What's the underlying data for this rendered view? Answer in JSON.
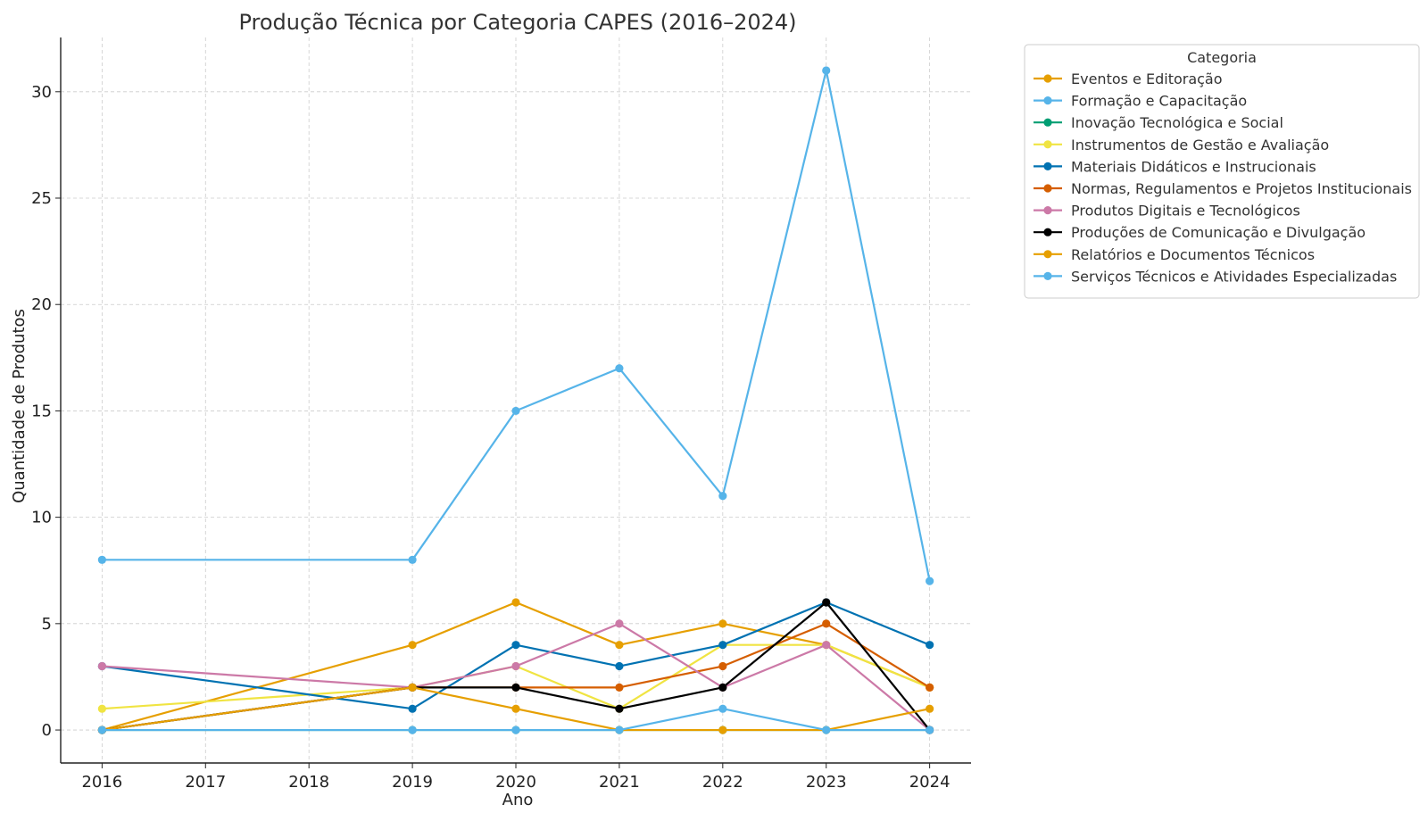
{
  "chart_data": {
    "type": "line",
    "title": "Produção Técnica por Categoria CAPES (2016–2024)",
    "xlabel": "Ano",
    "ylabel": "Quantidade de Produtos",
    "x": [
      2016,
      2019,
      2020,
      2021,
      2022,
      2023,
      2024
    ],
    "xticks": [
      "2016",
      "2017",
      "2018",
      "2019",
      "2020",
      "2021",
      "2022",
      "2023",
      "2024"
    ],
    "xlim": [
      2015.6,
      2024.4
    ],
    "yticks": [
      0,
      5,
      10,
      15,
      20,
      25,
      30
    ],
    "ylim": [
      -1.55,
      32.55
    ],
    "grid": true,
    "legend": {
      "title": "Categoria",
      "position": "outside-top-right"
    },
    "series": [
      {
        "name": "Eventos e Editoração",
        "color": "#E69F00",
        "values": [
          0,
          4,
          6,
          4,
          5,
          4,
          2
        ]
      },
      {
        "name": "Formação e Capacitação",
        "color": "#56B4E9",
        "values": [
          8,
          8,
          15,
          17,
          11,
          31,
          7
        ]
      },
      {
        "name": "Inovação Tecnológica e Social",
        "color": "#009E73",
        "values": [
          0,
          0,
          0,
          0,
          0,
          0,
          0
        ]
      },
      {
        "name": "Instrumentos de Gestão e Avaliação",
        "color": "#F0E442",
        "values": [
          1,
          2,
          3,
          1,
          4,
          4,
          2
        ]
      },
      {
        "name": "Materiais Didáticos e Instrucionais",
        "color": "#0072B2",
        "values": [
          3,
          1,
          4,
          3,
          4,
          6,
          4
        ]
      },
      {
        "name": "Normas, Regulamentos e Projetos Institucionais",
        "color": "#D55E00",
        "values": [
          0,
          2,
          2,
          2,
          3,
          5,
          2
        ]
      },
      {
        "name": "Produtos Digitais e Tecnológicos",
        "color": "#CC79A7",
        "values": [
          3,
          2,
          3,
          5,
          2,
          4,
          0
        ]
      },
      {
        "name": "Produções de Comunicação e Divulgação",
        "color": "#000000",
        "values": [
          0,
          2,
          2,
          1,
          2,
          6,
          0
        ]
      },
      {
        "name": "Relatórios e Documentos Técnicos",
        "color": "#E69F00",
        "values": [
          0,
          2,
          1,
          0,
          0,
          0,
          1
        ]
      },
      {
        "name": "Serviços Técnicos e Atividades Especializadas",
        "color": "#56B4E9",
        "values": [
          0,
          0,
          0,
          0,
          1,
          0,
          0
        ]
      }
    ]
  }
}
